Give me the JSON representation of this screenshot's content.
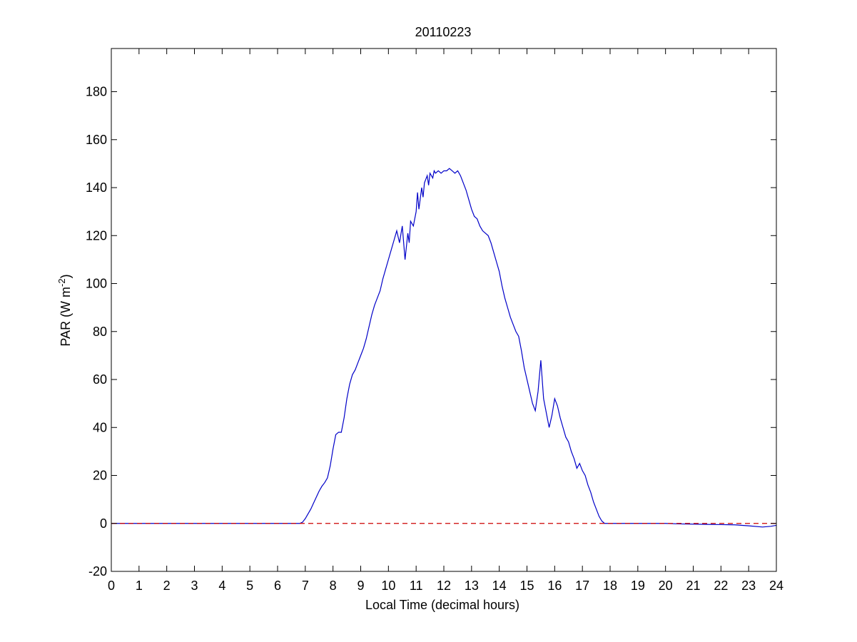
{
  "chart_data": {
    "type": "line",
    "title": "20110223",
    "xlabel": "Local Time (decimal hours)",
    "ylabel_main": "PAR (W m",
    "ylabel_sup": "-2",
    "ylabel_close": ")",
    "xlim": [
      0,
      24
    ],
    "ylim": [
      -20,
      198
    ],
    "xticks": [
      0,
      1,
      2,
      3,
      4,
      5,
      6,
      7,
      8,
      9,
      10,
      11,
      12,
      13,
      14,
      15,
      16,
      17,
      18,
      19,
      20,
      21,
      22,
      23,
      24
    ],
    "yticks": [
      -20,
      0,
      20,
      40,
      60,
      80,
      100,
      120,
      140,
      160,
      180
    ],
    "grid": false,
    "colors": {
      "series": "#0000c8",
      "reference": "#cc0000",
      "axes": "#000000"
    },
    "series": [
      {
        "style": "solid",
        "x": [
          0,
          6.5,
          6.8,
          6.9,
          7.0,
          7.1,
          7.2,
          7.3,
          7.4,
          7.5,
          7.6,
          7.7,
          7.8,
          7.9,
          8.0,
          8.1,
          8.2,
          8.3,
          8.4,
          8.5,
          8.6,
          8.7,
          8.8,
          8.9,
          9.0,
          9.1,
          9.2,
          9.3,
          9.4,
          9.5,
          9.6,
          9.7,
          9.8,
          9.9,
          10.0,
          10.1,
          10.2,
          10.3,
          10.4,
          10.5,
          10.6,
          10.7,
          10.75,
          10.8,
          10.9,
          11.0,
          11.05,
          11.1,
          11.2,
          11.25,
          11.3,
          11.4,
          11.45,
          11.5,
          11.6,
          11.65,
          11.7,
          11.8,
          11.9,
          12.0,
          12.1,
          12.2,
          12.3,
          12.4,
          12.5,
          12.6,
          12.7,
          12.8,
          12.9,
          13.0,
          13.1,
          13.2,
          13.3,
          13.4,
          13.5,
          13.6,
          13.7,
          13.8,
          13.9,
          14.0,
          14.1,
          14.2,
          14.3,
          14.4,
          14.5,
          14.6,
          14.7,
          14.8,
          14.9,
          15.0,
          15.1,
          15.2,
          15.3,
          15.4,
          15.5,
          15.55,
          15.6,
          15.7,
          15.8,
          15.9,
          16.0,
          16.1,
          16.2,
          16.3,
          16.4,
          16.5,
          16.6,
          16.7,
          16.8,
          16.9,
          17.0,
          17.1,
          17.2,
          17.3,
          17.4,
          17.5,
          17.6,
          17.7,
          17.8,
          17.9,
          18.0,
          18.2,
          18.5,
          19.0,
          19.5,
          20.0,
          20.5,
          21.0,
          21.5,
          22.0,
          22.5,
          23.0,
          23.5,
          23.8,
          24.0
        ],
        "y": [
          0,
          0,
          0,
          0.5,
          2,
          4,
          6,
          8.5,
          11,
          13.5,
          15.5,
          17,
          19,
          24,
          31,
          37,
          38,
          38,
          44,
          52,
          58,
          62,
          64,
          67,
          70,
          73,
          77,
          82,
          87,
          91,
          94,
          97,
          102,
          106,
          110,
          114,
          118,
          122,
          117,
          124,
          110,
          121,
          117,
          126,
          124,
          130,
          138,
          131,
          140,
          136,
          142,
          145,
          141,
          146,
          144,
          147,
          146,
          147,
          146,
          147,
          147,
          148,
          147,
          146,
          147,
          145,
          142,
          139,
          135,
          131,
          128,
          127,
          124,
          122,
          121,
          120,
          117,
          113,
          109,
          105,
          99,
          94,
          90,
          86,
          83,
          80,
          78,
          72,
          65,
          60,
          55,
          50,
          47,
          55,
          68,
          60,
          52,
          46,
          40,
          45,
          52,
          49,
          44,
          40,
          36,
          34,
          30,
          27,
          23,
          25,
          22,
          20,
          16,
          13,
          9,
          6,
          3,
          1,
          0,
          0,
          0,
          0,
          0,
          0,
          0,
          0,
          -0.2,
          -0.3,
          -0.4,
          -0.5,
          -0.6,
          -1,
          -1.5,
          -1.2,
          -0.8
        ]
      },
      {
        "style": "dashed",
        "x": [
          0,
          24
        ],
        "y": [
          0,
          0
        ]
      }
    ]
  }
}
